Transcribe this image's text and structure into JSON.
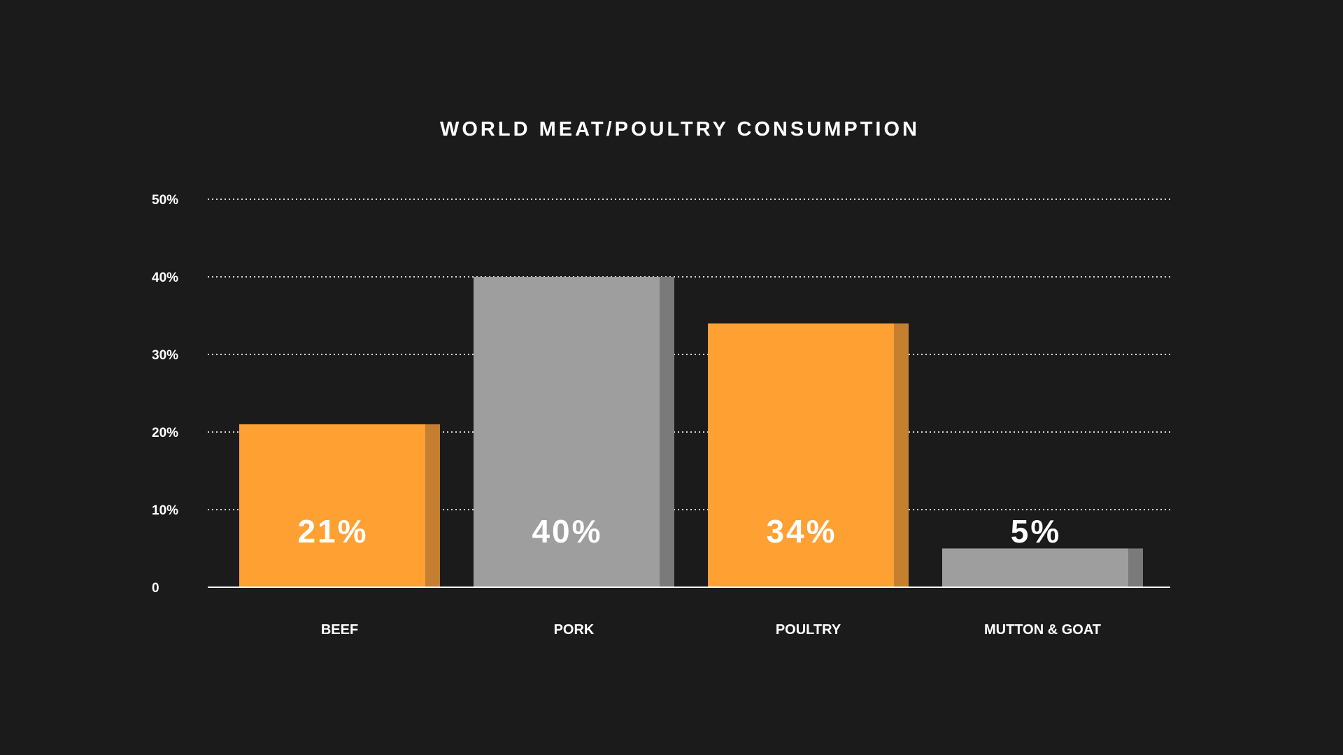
{
  "chart_data": {
    "type": "bar",
    "title": "WORLD MEAT/POULTRY CONSUMPTION",
    "xlabel": "",
    "ylabel": "",
    "categories": [
      "BEEF",
      "PORK",
      "POULTRY",
      "MUTTON & GOAT"
    ],
    "values": [
      21,
      40,
      34,
      5
    ],
    "value_labels": [
      "21%",
      "40%",
      "34%",
      "5%"
    ],
    "ylim": [
      0,
      50
    ],
    "yticks": [
      0,
      10,
      20,
      30,
      40,
      50
    ],
    "ytick_labels": [
      "0",
      "10%",
      "20%",
      "30%",
      "40%",
      "50%"
    ],
    "grid": true,
    "legend": "none",
    "colors": {
      "background": "#1b1b1b",
      "orange": "#ffa033",
      "orange_side": "#c47f30",
      "gray": "#9e9e9e",
      "gray_side": "#7a7a7a",
      "gridline": "#d9d9d9",
      "text": "#ffffff"
    },
    "bar_colors": [
      "orange",
      "gray",
      "orange",
      "gray"
    ]
  }
}
